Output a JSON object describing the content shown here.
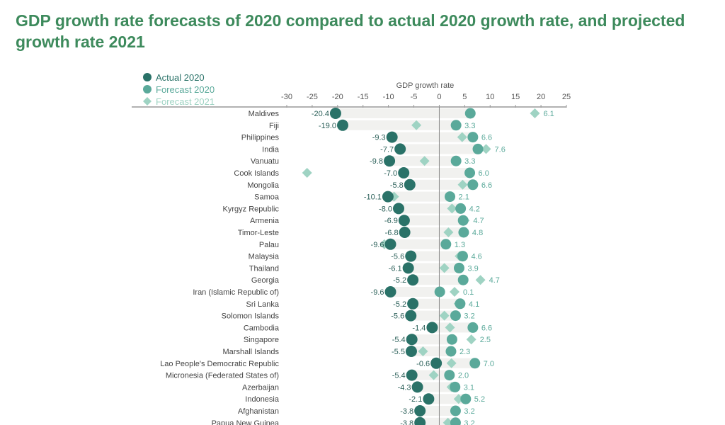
{
  "chart_data": {
    "type": "scatter",
    "title": "GDP growth rate forecasts of 2020 compared to actual 2020 growth rate, and projected growth rate 2021",
    "xlabel": "GDP growth rate",
    "xlim": [
      -30,
      25
    ],
    "xticks": [
      -30,
      -25,
      -20,
      -15,
      -10,
      -5,
      0,
      5,
      10,
      15,
      20,
      25
    ],
    "legend_position": "top-left",
    "grid": false,
    "colors": {
      "actual_2020": "#2a7268",
      "forecast_2020": "#5aa99a",
      "forecast_2021": "#9fd3c3",
      "title": "#3d8a5c",
      "band": "#f1f1ef"
    },
    "series_names": [
      "Actual 2020",
      "Forecast 2020",
      "Forecast 2021"
    ],
    "categories": [
      "Maldives",
      "Fiji",
      "Philippines",
      "India",
      "Vanuatu",
      "Cook Islands",
      "Mongolia",
      "Samoa",
      "Kyrgyz Republic",
      "Armenia",
      "Timor-Leste",
      "Palau",
      "Malaysia",
      "Thailand",
      "Georgia",
      "Iran (Islamic Republic of)",
      "Sri Lanka",
      "Solomon Islands",
      "Cambodia",
      "Singapore",
      "Marshall Islands",
      "Lao People's Democratic Republic",
      "Micronesia (Federated States of)",
      "Azerbaijan",
      "Indonesia",
      "Afghanistan",
      "Papua New Guinea"
    ],
    "actual_2020": [
      -20.4,
      -19.0,
      -9.3,
      -7.7,
      -9.8,
      -7.0,
      -5.8,
      -10.1,
      -8.0,
      -6.9,
      -6.8,
      -9.6,
      -5.6,
      -6.1,
      -5.2,
      -9.6,
      -5.2,
      -5.6,
      -1.4,
      -5.4,
      -5.5,
      -0.6,
      -5.4,
      -4.3,
      -2.1,
      -3.8,
      -3.8
    ],
    "actual_2020_labels": [
      "-20.4",
      "-19.0",
      "-9.3",
      "-7.7",
      "-9.8",
      "-7.0",
      "-5.8",
      "-10.1",
      "-8.0",
      "-6.9",
      "-6.8",
      "-9.6",
      "-5.6",
      "-6.1",
      "-5.2",
      "-9.6",
      "-5.2",
      "-5.6",
      "-1.4",
      "-5.4",
      "-5.5",
      "-0.6",
      "-5.4",
      "-4.3",
      "-2.1",
      "-3.8",
      "-3.8"
    ],
    "forecast_2020": [
      6.1,
      3.3,
      6.6,
      7.6,
      3.3,
      6.0,
      6.6,
      2.1,
      4.2,
      4.7,
      4.8,
      1.3,
      4.6,
      3.9,
      4.7,
      0.1,
      4.1,
      3.2,
      6.6,
      2.5,
      2.3,
      7.0,
      2.0,
      3.1,
      5.2,
      3.2,
      3.2
    ],
    "forecast_2020_labels": [
      "6.1",
      "3.3",
      "6.6",
      "7.6",
      "3.3",
      "6.0",
      "6.6",
      "2.1",
      "4.2",
      "4.7",
      "4.8",
      "1.3",
      "4.6",
      "3.9",
      "4.7",
      "0.1",
      "4.1",
      "3.2",
      "6.6",
      "2.5",
      "2.3",
      "7.0",
      "2.0",
      "3.1",
      "5.2",
      "3.2",
      "3.2"
    ],
    "forecast_2021": [
      18.8,
      -4.5,
      4.5,
      9.2,
      -2.9,
      -26,
      4.6,
      -8.9,
      2.5,
      5.0,
      1.8,
      -10.8,
      4.0,
      1.0,
      8.1,
      3.0,
      3.8,
      1.0,
      2.1,
      6.3,
      -3.2,
      2.4,
      -1.1,
      2.4,
      3.8,
      null,
      1.7
    ]
  }
}
